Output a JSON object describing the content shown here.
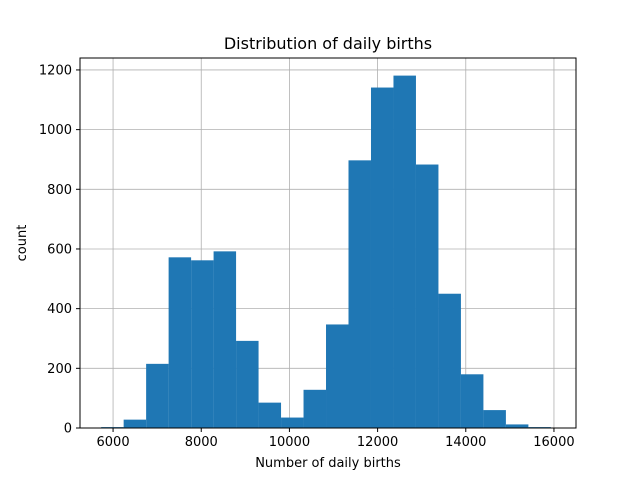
{
  "chart_data": {
    "type": "bar",
    "title": "Distribution of daily births",
    "xlabel": "Number of daily births",
    "ylabel": "count",
    "grid": true,
    "bar_color": "#1f77b4",
    "xlim": [
      5250,
      16500
    ],
    "ylim": [
      0,
      1240
    ],
    "xticks": [
      6000,
      8000,
      10000,
      12000,
      14000,
      16000
    ],
    "xtick_labels": [
      "6000",
      "8000",
      "10000",
      "12000",
      "14000",
      "16000"
    ],
    "yticks": [
      0,
      200,
      400,
      600,
      800,
      1000,
      1200
    ],
    "ytick_labels": [
      "0",
      "200",
      "400",
      "600",
      "800",
      "1000",
      "1200"
    ],
    "bin_edges": [
      5730,
      6240,
      6750,
      7260,
      7770,
      8280,
      8790,
      9300,
      9810,
      10320,
      10830,
      11340,
      11850,
      12360,
      12870,
      13380,
      13890,
      14400,
      14910,
      15420,
      15930
    ],
    "values": [
      3,
      28,
      215,
      572,
      562,
      592,
      292,
      85,
      35,
      128,
      347,
      897,
      1141,
      1181,
      883,
      450,
      180,
      60,
      12,
      3
    ]
  }
}
